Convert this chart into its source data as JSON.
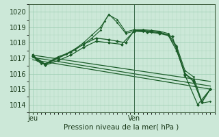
{
  "xlabel": "Pression niveau de la mer( hPa )",
  "ylim": [
    1013.7,
    1020.5
  ],
  "xlim": [
    0,
    44
  ],
  "yticks": [
    1014,
    1015,
    1016,
    1017,
    1018,
    1019,
    1020
  ],
  "xtick_positions": [
    1,
    25
  ],
  "xtick_labels": [
    "Jeu",
    "Ven"
  ],
  "vline_x": 25,
  "bg_color": "#cce8d8",
  "grid_color": "#99ccb0",
  "line_color": "#1a5c28",
  "series": [
    {
      "x": [
        1,
        2,
        3,
        4,
        5,
        7,
        9,
        11,
        13,
        15,
        17,
        19,
        21,
        23,
        25,
        27,
        29,
        31,
        33,
        35,
        37,
        39,
        41,
        43
      ],
      "y": [
        1017.2,
        1016.9,
        1016.7,
        1016.65,
        1016.8,
        1017.1,
        1017.3,
        1017.6,
        1018.0,
        1018.5,
        1019.0,
        1019.8,
        1019.5,
        1018.7,
        1018.85,
        1018.85,
        1018.8,
        1018.75,
        1018.6,
        1017.8,
        1016.2,
        1015.8,
        1014.2,
        1015.0
      ]
    },
    {
      "x": [
        1,
        2,
        3,
        4,
        5,
        7,
        9,
        11,
        13,
        15,
        17,
        18,
        19,
        21,
        23,
        25,
        27,
        29,
        31,
        33,
        35,
        37,
        39,
        41,
        43
      ],
      "y": [
        1017.15,
        1016.85,
        1016.65,
        1016.6,
        1016.75,
        1017.05,
        1017.25,
        1017.55,
        1017.9,
        1018.3,
        1018.8,
        1019.4,
        1019.85,
        1019.3,
        1018.6,
        1018.75,
        1018.75,
        1018.7,
        1018.65,
        1018.5,
        1017.7,
        1016.0,
        1015.6,
        1014.1,
        1014.2
      ]
    },
    {
      "x": [
        1,
        4,
        7,
        10,
        13,
        16,
        19,
        21,
        23,
        25,
        27,
        29,
        31,
        33,
        35,
        37,
        39,
        41,
        43
      ],
      "y": [
        1017.2,
        1016.6,
        1017.0,
        1017.4,
        1017.9,
        1018.3,
        1018.2,
        1018.1,
        1018.0,
        1018.8,
        1018.8,
        1018.75,
        1018.7,
        1018.5,
        1017.5,
        1016.0,
        1015.5,
        1014.15,
        1015.0
      ]
    },
    {
      "x": [
        1,
        4,
        7,
        10,
        13,
        16,
        19,
        22,
        25,
        28,
        31,
        34,
        37,
        40,
        43
      ],
      "y": [
        1017.15,
        1016.55,
        1016.85,
        1017.2,
        1017.7,
        1018.1,
        1018.0,
        1017.9,
        1018.75,
        1018.7,
        1018.6,
        1018.4,
        1015.9,
        1014.0,
        1015.0
      ]
    },
    {
      "x": [
        1,
        43
      ],
      "y": [
        1017.2,
        1015.5
      ]
    },
    {
      "x": [
        1,
        43
      ],
      "y": [
        1017.05,
        1015.2
      ]
    },
    {
      "x": [
        1,
        43
      ],
      "y": [
        1016.9,
        1015.0
      ]
    }
  ]
}
